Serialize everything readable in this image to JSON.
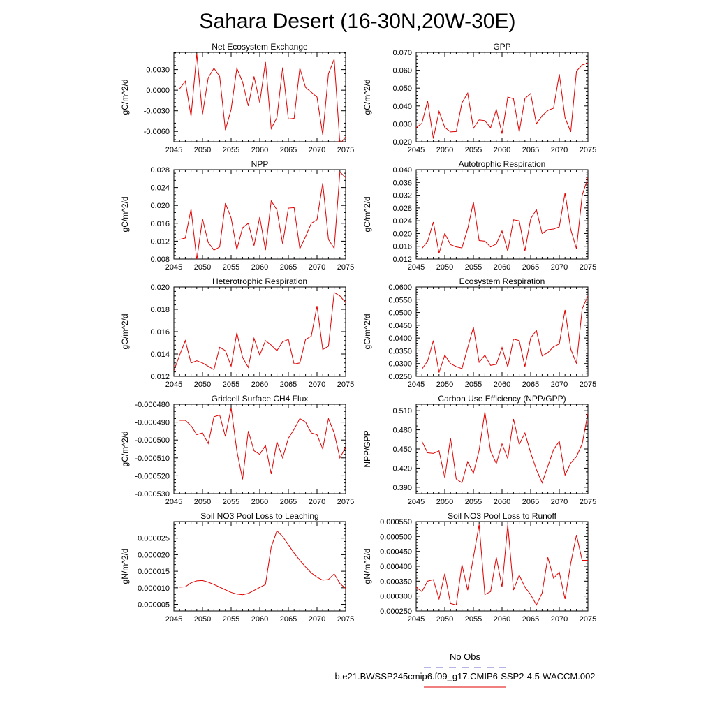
{
  "title": "Sahara Desert (16-30N,20W-30E)",
  "legend": {
    "entries": [
      {
        "label": "No Obs",
        "color": "#6a6acd",
        "dash": true
      },
      {
        "label": "b.e21.BWSSP245cmip6.f09_g17.CMIP6-SSP2-4.5-WACCM.002",
        "color": "#e00000",
        "dash": false
      }
    ]
  },
  "chart_data": [
    {
      "type": "line",
      "title": "Net Ecosystem Exchange",
      "ylabel": "gC/m^2/d",
      "xlim": [
        2045,
        2075
      ],
      "ylim": [
        -0.0075,
        0.0055
      ],
      "xticks": [
        2045,
        2050,
        2055,
        2060,
        2065,
        2070,
        2075
      ],
      "yticks": [
        -0.006,
        -0.003,
        0.0,
        0.003
      ],
      "ytick_labels": [
        "-0.0060",
        "-0.0030",
        "0.0000",
        "0.0030"
      ],
      "x": [
        2046,
        2047,
        2048,
        2049,
        2050,
        2051,
        2052,
        2053,
        2054,
        2055,
        2056,
        2057,
        2058,
        2059,
        2060,
        2061,
        2062,
        2063,
        2064,
        2065,
        2066,
        2067,
        2068,
        2069,
        2070,
        2071,
        2072,
        2073,
        2074,
        2075
      ],
      "series": [
        {
          "color": "#e00000",
          "values": [
            0.0002,
            0.0013,
            -0.0038,
            0.0053,
            -0.0035,
            0.0018,
            0.0032,
            0.002,
            -0.0058,
            -0.0028,
            0.0032,
            0.0012,
            -0.0023,
            0.002,
            -0.0018,
            0.0041,
            -0.0056,
            -0.004,
            0.0033,
            -0.0042,
            -0.0041,
            0.0032,
            0.0004,
            -0.0003,
            -0.001,
            -0.0065,
            0.0024,
            0.0045,
            -0.0078,
            -0.0068
          ]
        }
      ]
    },
    {
      "type": "line",
      "title": "GPP",
      "ylabel": "gC/m^2/d",
      "xlim": [
        2045,
        2075
      ],
      "ylim": [
        0.02,
        0.07
      ],
      "xticks": [
        2045,
        2050,
        2055,
        2060,
        2065,
        2070,
        2075
      ],
      "yticks": [
        0.02,
        0.03,
        0.04,
        0.05,
        0.06,
        0.07
      ],
      "ytick_labels": [
        "0.020",
        "0.030",
        "0.040",
        "0.050",
        "0.060",
        "0.070"
      ],
      "x": [
        2045,
        2046,
        2047,
        2048,
        2049,
        2050,
        2051,
        2052,
        2053,
        2054,
        2055,
        2056,
        2057,
        2058,
        2059,
        2060,
        2061,
        2062,
        2063,
        2064,
        2065,
        2066,
        2067,
        2068,
        2069,
        2070,
        2071,
        2072,
        2073,
        2074,
        2075
      ],
      "series": [
        {
          "color": "#e00000",
          "values": [
            0.0278,
            0.0303,
            0.0428,
            0.0218,
            0.037,
            0.028,
            0.0255,
            0.0257,
            0.0418,
            0.0472,
            0.0275,
            0.0322,
            0.0318,
            0.0278,
            0.038,
            0.0245,
            0.045,
            0.044,
            0.0255,
            0.0442,
            0.047,
            0.03,
            0.0345,
            0.0375,
            0.0388,
            0.0578,
            0.0335,
            0.0255,
            0.0595,
            0.063,
            0.064
          ]
        }
      ]
    },
    {
      "type": "line",
      "title": "NPP",
      "ylabel": "gC/m^2/d",
      "xlim": [
        2045,
        2075
      ],
      "ylim": [
        0.008,
        0.028
      ],
      "xticks": [
        2045,
        2050,
        2055,
        2060,
        2065,
        2070,
        2075
      ],
      "yticks": [
        0.008,
        0.012,
        0.016,
        0.02,
        0.024,
        0.028
      ],
      "ytick_labels": [
        "0.008",
        "0.012",
        "0.016",
        "0.020",
        "0.024",
        "0.028"
      ],
      "x": [
        2046,
        2047,
        2048,
        2049,
        2050,
        2051,
        2052,
        2053,
        2054,
        2055,
        2056,
        2057,
        2058,
        2059,
        2060,
        2061,
        2062,
        2063,
        2064,
        2065,
        2066,
        2067,
        2068,
        2069,
        2070,
        2071,
        2072,
        2073,
        2074,
        2075
      ],
      "series": [
        {
          "color": "#e00000",
          "values": [
            0.0124,
            0.0127,
            0.0192,
            0.0078,
            0.017,
            0.0117,
            0.01,
            0.0107,
            0.0205,
            0.0172,
            0.0101,
            0.015,
            0.016,
            0.011,
            0.0174,
            0.01,
            0.021,
            0.019,
            0.0114,
            0.0194,
            0.0195,
            0.0103,
            0.013,
            0.016,
            0.0168,
            0.025,
            0.0124,
            0.0104,
            0.0275,
            0.0262
          ]
        }
      ]
    },
    {
      "type": "line",
      "title": "Autotrophic Respiration",
      "ylabel": "gC/m^2/d",
      "xlim": [
        2045,
        2075
      ],
      "ylim": [
        0.012,
        0.04
      ],
      "xticks": [
        2045,
        2050,
        2055,
        2060,
        2065,
        2070,
        2075
      ],
      "yticks": [
        0.012,
        0.016,
        0.02,
        0.024,
        0.028,
        0.032,
        0.036,
        0.04
      ],
      "ytick_labels": [
        "0.012",
        "0.016",
        "0.020",
        "0.024",
        "0.028",
        "0.032",
        "0.036",
        "0.040"
      ],
      "x": [
        2046,
        2047,
        2048,
        2049,
        2050,
        2051,
        2052,
        2053,
        2054,
        2055,
        2056,
        2057,
        2058,
        2059,
        2060,
        2061,
        2062,
        2063,
        2064,
        2065,
        2066,
        2067,
        2068,
        2069,
        2070,
        2071,
        2072,
        2073,
        2074,
        2075
      ],
      "series": [
        {
          "color": "#e00000",
          "values": [
            0.0153,
            0.0175,
            0.0236,
            0.0138,
            0.02,
            0.0165,
            0.0158,
            0.0155,
            0.0215,
            0.0298,
            0.0178,
            0.0176,
            0.0158,
            0.0167,
            0.0208,
            0.0145,
            0.0243,
            0.024,
            0.0145,
            0.0246,
            0.0275,
            0.02,
            0.0212,
            0.0214,
            0.0221,
            0.0327,
            0.0212,
            0.0152,
            0.032,
            0.0375
          ]
        }
      ]
    },
    {
      "type": "line",
      "title": "Heterotrophic Respiration",
      "ylabel": "gC/m^2/d",
      "xlim": [
        2045,
        2075
      ],
      "ylim": [
        0.012,
        0.02
      ],
      "xticks": [
        2045,
        2050,
        2055,
        2060,
        2065,
        2070,
        2075
      ],
      "yticks": [
        0.012,
        0.014,
        0.016,
        0.018,
        0.02
      ],
      "ytick_labels": [
        "0.012",
        "0.014",
        "0.016",
        "0.018",
        "0.020"
      ],
      "x": [
        2045,
        2046,
        2047,
        2048,
        2049,
        2050,
        2051,
        2052,
        2053,
        2054,
        2055,
        2056,
        2057,
        2058,
        2059,
        2060,
        2061,
        2062,
        2063,
        2064,
        2065,
        2066,
        2067,
        2068,
        2069,
        2070,
        2071,
        2072,
        2073,
        2074,
        2075
      ],
      "series": [
        {
          "color": "#e00000",
          "values": [
            0.0125,
            0.0139,
            0.0152,
            0.0132,
            0.0134,
            0.0132,
            0.0129,
            0.0126,
            0.0146,
            0.0143,
            0.0129,
            0.0159,
            0.0137,
            0.0128,
            0.0154,
            0.0139,
            0.0152,
            0.0148,
            0.0143,
            0.0151,
            0.0153,
            0.0131,
            0.0132,
            0.0153,
            0.0156,
            0.0183,
            0.0144,
            0.0147,
            0.0195,
            0.0192,
            0.0186
          ]
        }
      ]
    },
    {
      "type": "line",
      "title": "Ecosystem Respiration",
      "ylabel": "gC/m^2/d",
      "xlim": [
        2045,
        2075
      ],
      "ylim": [
        0.025,
        0.06
      ],
      "xticks": [
        2045,
        2050,
        2055,
        2060,
        2065,
        2070,
        2075
      ],
      "yticks": [
        0.025,
        0.03,
        0.035,
        0.04,
        0.045,
        0.05,
        0.055,
        0.06
      ],
      "ytick_labels": [
        "0.0250",
        "0.0300",
        "0.0350",
        "0.0400",
        "0.0450",
        "0.0500",
        "0.0550",
        "0.0600"
      ],
      "x": [
        2046,
        2047,
        2048,
        2049,
        2050,
        2051,
        2052,
        2053,
        2054,
        2055,
        2056,
        2057,
        2058,
        2059,
        2060,
        2061,
        2062,
        2063,
        2064,
        2065,
        2066,
        2067,
        2068,
        2069,
        2070,
        2071,
        2072,
        2073,
        2074,
        2075
      ],
      "series": [
        {
          "color": "#e00000",
          "values": [
            0.0278,
            0.031,
            0.039,
            0.0265,
            0.0333,
            0.03,
            0.0288,
            0.028,
            0.0362,
            0.0442,
            0.0305,
            0.0333,
            0.0293,
            0.0297,
            0.0363,
            0.0287,
            0.0396,
            0.039,
            0.0288,
            0.04,
            0.043,
            0.033,
            0.0343,
            0.0366,
            0.0377,
            0.051,
            0.0357,
            0.03,
            0.0515,
            0.0565
          ]
        }
      ]
    },
    {
      "type": "line",
      "title": "Gridcell Surface CH4 Flux",
      "ylabel": "gC/m^2/d",
      "xlim": [
        2045,
        2075
      ],
      "ylim": [
        -0.00053,
        -0.00048
      ],
      "xticks": [
        2045,
        2050,
        2055,
        2060,
        2065,
        2070,
        2075
      ],
      "yticks": [
        -0.00053,
        -0.00052,
        -0.00051,
        -0.0005,
        -0.00049,
        -0.00048
      ],
      "ytick_labels": [
        "-0.000530",
        "-0.000520",
        "-0.000510",
        "-0.000500",
        "-0.000490",
        "-0.000480"
      ],
      "x": [
        2046,
        2047,
        2048,
        2049,
        2050,
        2051,
        2052,
        2053,
        2054,
        2055,
        2056,
        2057,
        2058,
        2059,
        2060,
        2061,
        2062,
        2063,
        2064,
        2065,
        2066,
        2067,
        2068,
        2069,
        2070,
        2071,
        2072,
        2073,
        2074,
        2075
      ],
      "series": [
        {
          "color": "#e00000",
          "values": [
            -0.000489,
            -0.000489,
            -0.000492,
            -0.000497,
            -0.000496,
            -0.000502,
            -0.000487,
            -0.000486,
            -0.000498,
            -0.000482,
            -0.000506,
            -0.000522,
            -0.000495,
            -0.000506,
            -0.000508,
            -0.000503,
            -0.000519,
            -0.000501,
            -0.00051,
            -0.000499,
            -0.000494,
            -0.000488,
            -0.00049,
            -0.000496,
            -0.000497,
            -0.000505,
            -0.000488,
            -0.000496,
            -0.00051,
            -0.000504
          ]
        }
      ]
    },
    {
      "type": "line",
      "title": "Carbon Use Efficiency (NPP/GPP)",
      "ylabel": "NPP/GPP",
      "xlim": [
        2045,
        2075
      ],
      "ylim": [
        0.38,
        0.52
      ],
      "xticks": [
        2045,
        2050,
        2055,
        2060,
        2065,
        2070,
        2075
      ],
      "yticks": [
        0.39,
        0.42,
        0.45,
        0.48,
        0.51
      ],
      "ytick_labels": [
        "0.390",
        "0.420",
        "0.450",
        "0.480",
        "0.510"
      ],
      "x": [
        2046,
        2047,
        2048,
        2049,
        2050,
        2051,
        2052,
        2053,
        2054,
        2055,
        2056,
        2057,
        2058,
        2059,
        2060,
        2061,
        2062,
        2063,
        2064,
        2065,
        2066,
        2067,
        2068,
        2069,
        2070,
        2071,
        2072,
        2073,
        2074,
        2075
      ],
      "series": [
        {
          "color": "#e00000",
          "values": [
            0.462,
            0.444,
            0.443,
            0.447,
            0.405,
            0.467,
            0.403,
            0.397,
            0.43,
            0.412,
            0.448,
            0.508,
            0.447,
            0.427,
            0.458,
            0.435,
            0.497,
            0.457,
            0.475,
            0.444,
            0.418,
            0.397,
            0.423,
            0.449,
            0.462,
            0.409,
            0.428,
            0.438,
            0.458,
            0.506
          ]
        }
      ]
    },
    {
      "type": "line",
      "title": "Soil NO3 Pool Loss to Leaching",
      "ylabel": "gN/m^2/d",
      "xlim": [
        2045,
        2075
      ],
      "ylim": [
        3e-06,
        3e-05
      ],
      "xticks": [
        2045,
        2050,
        2055,
        2060,
        2065,
        2070,
        2075
      ],
      "yticks": [
        5e-06,
        1e-05,
        1.5e-05,
        2e-05,
        2.5e-05
      ],
      "ytick_labels": [
        "0.000005",
        "0.000010",
        "0.000015",
        "0.000020",
        "0.000025"
      ],
      "x": [
        2046,
        2047,
        2048,
        2049,
        2050,
        2051,
        2052,
        2053,
        2054,
        2055,
        2056,
        2057,
        2058,
        2059,
        2060,
        2061,
        2062,
        2063,
        2064,
        2065,
        2066,
        2067,
        2068,
        2069,
        2070,
        2071,
        2072,
        2073,
        2074,
        2075
      ],
      "series": [
        {
          "color": "#e00000",
          "values": [
            1.02e-05,
            1.03e-05,
            1.15e-05,
            1.21e-05,
            1.22e-05,
            1.17e-05,
            1.1e-05,
            1.02e-05,
            9.4e-06,
            8.6e-06,
            8.1e-06,
            7.9e-06,
            8.3e-06,
            9.2e-06,
            1.01e-05,
            1.1e-05,
            2.23e-05,
            2.72e-05,
            2.55e-05,
            2.3e-05,
            2.05e-05,
            1.83e-05,
            1.63e-05,
            1.45e-05,
            1.32e-05,
            1.23e-05,
            1.25e-05,
            1.42e-05,
            1.13e-05,
            9.8e-06
          ]
        }
      ]
    },
    {
      "type": "line",
      "title": "Soil NO3 Pool Loss to Runoff",
      "ylabel": "gN/m^2/d",
      "xlim": [
        2045,
        2075
      ],
      "ylim": [
        0.00025,
        0.00055
      ],
      "xticks": [
        2045,
        2050,
        2055,
        2060,
        2065,
        2070,
        2075
      ],
      "yticks": [
        0.00025,
        0.0003,
        0.00035,
        0.0004,
        0.00045,
        0.0005,
        0.00055
      ],
      "ytick_labels": [
        "0.000250",
        "0.000300",
        "0.000350",
        "0.000400",
        "0.000450",
        "0.000500",
        "0.000550"
      ],
      "x": [
        2045,
        2046,
        2047,
        2048,
        2049,
        2050,
        2051,
        2052,
        2053,
        2054,
        2055,
        2056,
        2057,
        2058,
        2059,
        2060,
        2061,
        2062,
        2063,
        2064,
        2065,
        2066,
        2067,
        2068,
        2069,
        2070,
        2071,
        2072,
        2073,
        2074,
        2075
      ],
      "series": [
        {
          "color": "#e00000",
          "values": [
            0.00033,
            0.000315,
            0.00035,
            0.000355,
            0.00029,
            0.000375,
            0.000275,
            0.00027,
            0.000405,
            0.00032,
            0.00043,
            0.00054,
            0.000305,
            0.000315,
            0.00043,
            0.00033,
            0.00054,
            0.00032,
            0.00037,
            0.00033,
            0.000305,
            0.00027,
            0.00031,
            0.00043,
            0.00036,
            0.00038,
            0.00029,
            0.00041,
            0.000505,
            0.00042,
            0.00042
          ]
        }
      ]
    }
  ]
}
